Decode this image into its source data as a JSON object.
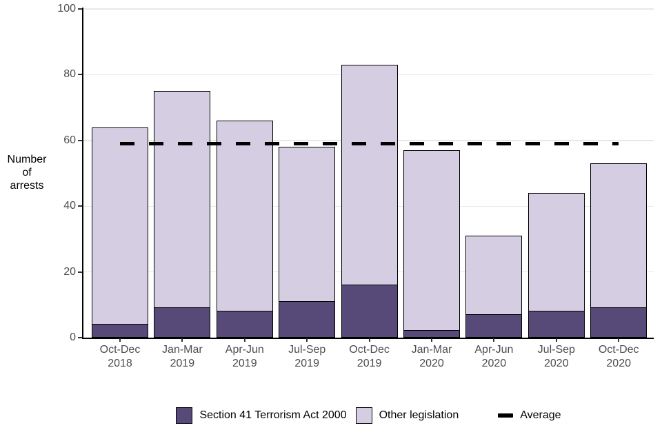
{
  "chart_data": {
    "type": "bar",
    "stacked": true,
    "title": "",
    "xlabel": "",
    "ylabel": "Number of arrests",
    "ylabel_lines": [
      "Number",
      "of",
      "arrests"
    ],
    "ylim": [
      0,
      100
    ],
    "yticks": [
      0,
      20,
      40,
      60,
      80,
      100
    ],
    "grid": "horizontal-light",
    "legend_position": "bottom-center",
    "categories": [
      {
        "quarter": "Oct-Dec",
        "year": "2018"
      },
      {
        "quarter": "Jan-Mar",
        "year": "2019"
      },
      {
        "quarter": "Apr-Jun",
        "year": "2019"
      },
      {
        "quarter": "Jul-Sep",
        "year": "2019"
      },
      {
        "quarter": "Oct-Dec",
        "year": "2019"
      },
      {
        "quarter": "Jan-Mar",
        "year": "2020"
      },
      {
        "quarter": "Apr-Jun",
        "year": "2020"
      },
      {
        "quarter": "Jul-Sep",
        "year": "2020"
      },
      {
        "quarter": "Oct-Dec",
        "year": "2020"
      }
    ],
    "series": [
      {
        "name": "Section 41 Terrorism Act 2000",
        "color": "#574a78",
        "values": [
          4,
          9,
          8,
          11,
          16,
          2,
          7,
          8,
          9
        ]
      },
      {
        "name": "Other legislation",
        "color": "#d5cee2",
        "values": [
          60,
          66,
          58,
          47,
          67,
          55,
          24,
          36,
          44
        ]
      }
    ],
    "totals": [
      64,
      75,
      66,
      58,
      83,
      57,
      31,
      44,
      53
    ],
    "average": {
      "label": "Average",
      "value": 59,
      "style": "dashed",
      "color": "#000000"
    }
  },
  "axes": {
    "axis_color": "#000000",
    "tick_label_color": "#4d4d4d",
    "gridline_color": "#e8e8e8"
  }
}
